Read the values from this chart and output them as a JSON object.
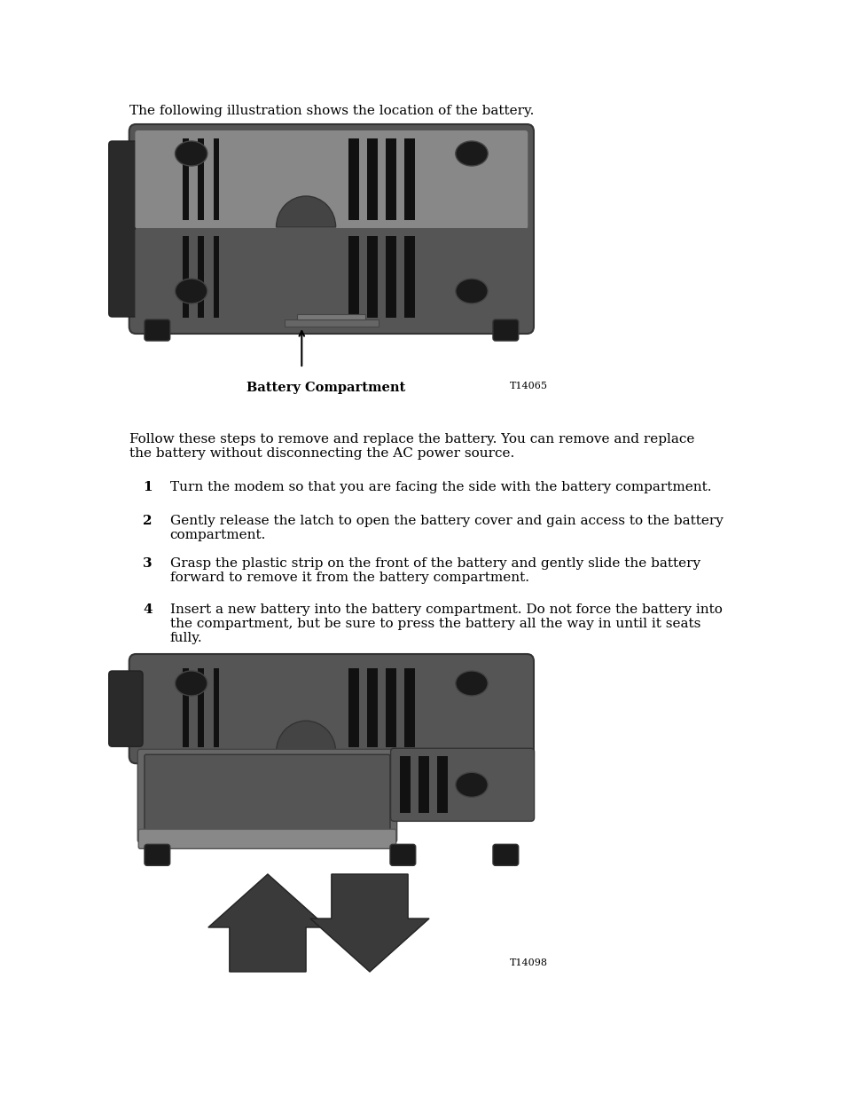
{
  "bg_color": "#ffffff",
  "text_color": "#000000",
  "intro_text": "The following illustration shows the location of the battery.",
  "battery_label": "Battery Compartment",
  "tag1": "T14065",
  "tag2": "T14098",
  "follow_text": "Follow these steps to remove and replace the battery. You can remove and replace\nthe battery without disconnecting the AC power source.",
  "steps": [
    {
      "num": "1",
      "text": "Turn the modem so that you are facing the side with the battery compartment."
    },
    {
      "num": "2",
      "text": "Gently release the latch to open the battery cover and gain access to the battery\ncompartment."
    },
    {
      "num": "3",
      "text": "Grasp the plastic strip on the front of the battery and gently slide the battery\nforward to remove it from the battery compartment."
    },
    {
      "num": "4",
      "text": "Insert a new battery into the battery compartment. Do not force the battery into\nthe compartment, but be sure to press the battery all the way in until it seats\nfully."
    }
  ],
  "device_color_dark": "#2a2a2a",
  "device_color_mid": "#555555",
  "device_color_light": "#888888",
  "device_color_lighter": "#aaaaaa",
  "device_color_slot": "#111111"
}
